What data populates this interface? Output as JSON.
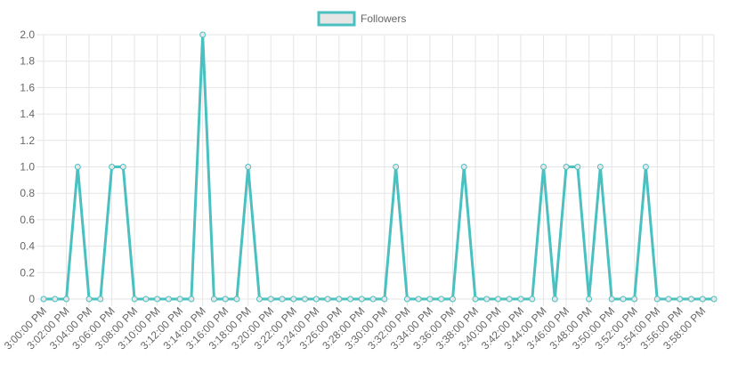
{
  "chart_data": {
    "type": "line",
    "legend": {
      "position": "top-center"
    },
    "grid": true,
    "ylim": [
      0,
      2.0
    ],
    "y_ticks": [
      "0",
      "0.2",
      "0.4",
      "0.6",
      "0.8",
      "1.0",
      "1.2",
      "1.4",
      "1.6",
      "1.8",
      "2.0"
    ],
    "x_tick_labels": [
      "3:00:00 PM",
      "3:02:00 PM",
      "3:04:00 PM",
      "3:06:00 PM",
      "3:08:00 PM",
      "3:10:00 PM",
      "3:12:00 PM",
      "3:14:00 PM",
      "3:16:00 PM",
      "3:18:00 PM",
      "3:20:00 PM",
      "3:22:00 PM",
      "3:24:00 PM",
      "3:26:00 PM",
      "3:28:00 PM",
      "3:30:00 PM",
      "3:32:00 PM",
      "3:34:00 PM",
      "3:36:00 PM",
      "3:38:00 PM",
      "3:40:00 PM",
      "3:42:00 PM",
      "3:44:00 PM",
      "3:46:00 PM",
      "3:48:00 PM",
      "3:50:00 PM",
      "3:52:00 PM",
      "3:54:00 PM",
      "3:56:00 PM",
      "3:58:00 PM"
    ],
    "x": [
      "3:00:00 PM",
      "3:01:00 PM",
      "3:02:00 PM",
      "3:03:00 PM",
      "3:04:00 PM",
      "3:05:00 PM",
      "3:06:00 PM",
      "3:07:00 PM",
      "3:08:00 PM",
      "3:09:00 PM",
      "3:10:00 PM",
      "3:11:00 PM",
      "3:12:00 PM",
      "3:13:00 PM",
      "3:14:00 PM",
      "3:15:00 PM",
      "3:16:00 PM",
      "3:17:00 PM",
      "3:18:00 PM",
      "3:19:00 PM",
      "3:20:00 PM",
      "3:21:00 PM",
      "3:22:00 PM",
      "3:23:00 PM",
      "3:24:00 PM",
      "3:25:00 PM",
      "3:26:00 PM",
      "3:27:00 PM",
      "3:28:00 PM",
      "3:29:00 PM",
      "3:30:00 PM",
      "3:31:00 PM",
      "3:32:00 PM",
      "3:33:00 PM",
      "3:34:00 PM",
      "3:35:00 PM",
      "3:36:00 PM",
      "3:37:00 PM",
      "3:38:00 PM",
      "3:39:00 PM",
      "3:40:00 PM",
      "3:41:00 PM",
      "3:42:00 PM",
      "3:43:00 PM",
      "3:44:00 PM",
      "3:45:00 PM",
      "3:46:00 PM",
      "3:47:00 PM",
      "3:48:00 PM",
      "3:49:00 PM",
      "3:50:00 PM",
      "3:51:00 PM",
      "3:52:00 PM",
      "3:53:00 PM",
      "3:54:00 PM",
      "3:55:00 PM",
      "3:56:00 PM",
      "3:57:00 PM",
      "3:58:00 PM",
      "3:59:00 PM"
    ],
    "series": [
      {
        "name": "Followers",
        "color": "#4bc0c0",
        "fill_color": "#e6e6e6",
        "values": [
          0,
          0,
          0,
          1,
          0,
          0,
          1,
          1,
          0,
          0,
          0,
          0,
          0,
          0,
          2,
          0,
          0,
          0,
          1,
          0,
          0,
          0,
          0,
          0,
          0,
          0,
          0,
          0,
          0,
          0,
          0,
          1,
          0,
          0,
          0,
          0,
          0,
          1,
          0,
          0,
          0,
          0,
          0,
          0,
          1,
          0,
          1,
          1,
          0,
          1,
          0,
          0,
          0,
          1,
          0,
          0,
          0,
          0,
          0,
          0
        ]
      }
    ]
  }
}
